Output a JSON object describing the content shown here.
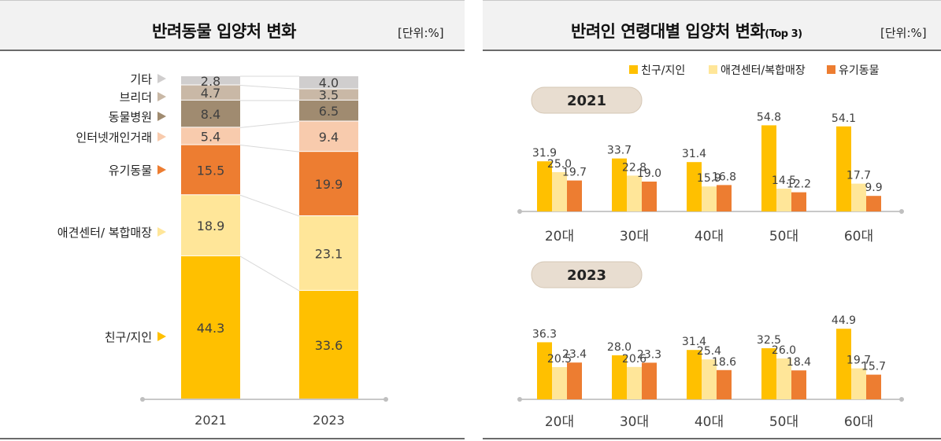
{
  "left_panel": {
    "title": "반려동물 입양처 변화",
    "unit": "[단위:%]"
  },
  "right_panel": {
    "title": "반려인 연령대별 입양처 변화",
    "title_suffix": "(Top 3)",
    "unit": "[단위:%]"
  },
  "colors": {
    "friend": "#ffc000",
    "petshop": "#ffe699",
    "abandoned": "#ed7d31",
    "personal": "#f8cbad",
    "hospital": "#a08b70",
    "breeder": "#c9b8a6",
    "other": "#d0cece",
    "badge": "#e8ddd0"
  },
  "chart_data": [
    {
      "type": "bar",
      "stacked": true,
      "title": "반려동물 입양처 변화",
      "categories": [
        "2021",
        "2023"
      ],
      "series": [
        {
          "name": "친구/지인",
          "values": [
            44.3,
            33.6
          ],
          "color_key": "friend",
          "value_labels": [
            "44.3",
            "33.6"
          ]
        },
        {
          "name": "애견센터/ 복합매장",
          "values": [
            18.9,
            23.1
          ],
          "color_key": "petshop",
          "value_labels": [
            "18.9",
            "23.1"
          ]
        },
        {
          "name": "유기동물",
          "values": [
            15.5,
            19.9
          ],
          "color_key": "abandoned",
          "value_labels": [
            "15.5",
            "19.9"
          ]
        },
        {
          "name": "인터넷개인거래",
          "values": [
            5.4,
            9.4
          ],
          "color_key": "personal",
          "value_labels": [
            "5.4",
            "9.4"
          ]
        },
        {
          "name": "동물병원",
          "values": [
            8.4,
            6.5
          ],
          "color_key": "hospital",
          "value_labels": [
            "8.4",
            "6.5"
          ]
        },
        {
          "name": "브리더",
          "values": [
            4.7,
            3.5
          ],
          "color_key": "breeder",
          "value_labels": [
            "4.7",
            "3.5"
          ]
        },
        {
          "name": "기타",
          "values": [
            2.8,
            4.0
          ],
          "color_key": "other",
          "value_labels": [
            "2.8",
            "4.0"
          ]
        }
      ],
      "ylim": [
        0,
        100
      ]
    },
    {
      "type": "bar",
      "title": "2021",
      "categories": [
        "20대",
        "30대",
        "40대",
        "50대",
        "60대"
      ],
      "series": [
        {
          "name": "친구/지인",
          "values": [
            31.9,
            33.7,
            31.4,
            54.8,
            54.1
          ],
          "color_key": "friend",
          "value_labels": [
            "31.9",
            "33.7",
            "31.4",
            "54.8",
            "54.1"
          ]
        },
        {
          "name": "애견센터/복합매장",
          "values": [
            25.0,
            22.8,
            15.9,
            14.5,
            17.7
          ],
          "color_key": "petshop",
          "value_labels": [
            "25.0",
            "22.8",
            "15.9",
            "14.5",
            "17.7"
          ]
        },
        {
          "name": "유기동물",
          "values": [
            19.7,
            19.0,
            16.8,
            12.2,
            9.9
          ],
          "color_key": "abandoned",
          "value_labels": [
            "19.7",
            "19.0",
            "16.8",
            "12.2",
            "9.9"
          ]
        }
      ],
      "legend": "top"
    },
    {
      "type": "bar",
      "title": "2023",
      "categories": [
        "20대",
        "30대",
        "40대",
        "50대",
        "60대"
      ],
      "series": [
        {
          "name": "친구/지인",
          "values": [
            36.3,
            28.0,
            31.4,
            32.5,
            44.9
          ],
          "color_key": "friend",
          "value_labels": [
            "36.3",
            "28.0",
            "31.4",
            "32.5",
            "44.9"
          ]
        },
        {
          "name": "애견센터/복합매장",
          "values": [
            20.5,
            20.6,
            25.4,
            26.0,
            19.7
          ],
          "color_key": "petshop",
          "value_labels": [
            "20.5",
            "20.6",
            "25.4",
            "26.0",
            "19.7"
          ]
        },
        {
          "name": "유기동물",
          "values": [
            23.4,
            23.3,
            18.6,
            18.4,
            15.7
          ],
          "color_key": "abandoned",
          "value_labels": [
            "23.4",
            "23.3",
            "18.6",
            "18.4",
            "15.7"
          ]
        }
      ]
    }
  ]
}
